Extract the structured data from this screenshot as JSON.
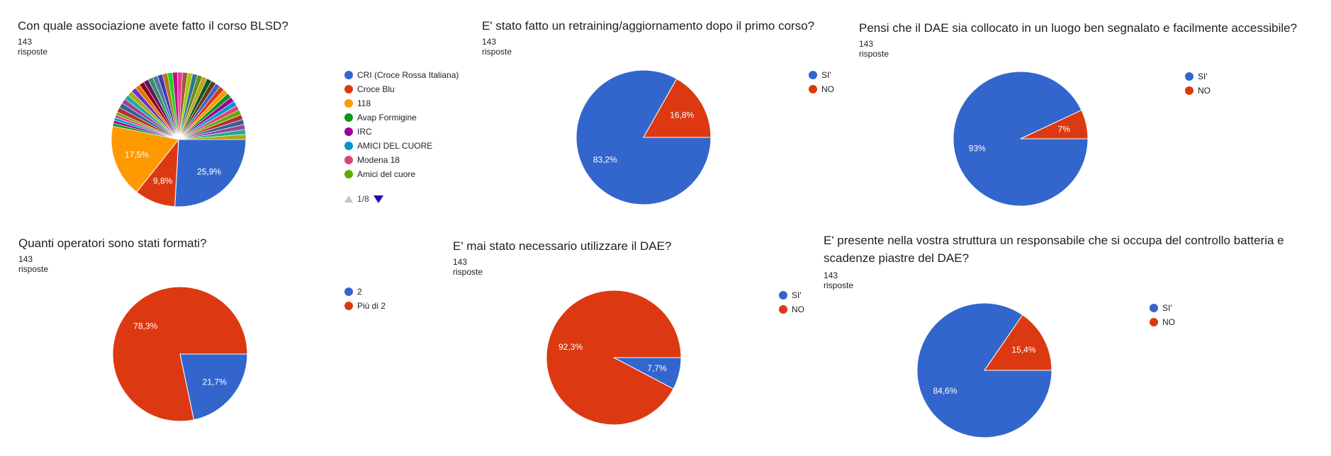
{
  "charts": [
    {
      "title": "Con quale associazione avete fatto il corso BLSD?",
      "count": "143 risposte",
      "legend": [
        {
          "label": "CRI (Croce Rossa Italiana)",
          "color": "#3366cc"
        },
        {
          "label": "Croce Blu",
          "color": "#dc3912"
        },
        {
          "label": "118",
          "color": "#ff9900"
        },
        {
          "label": "Avap Formigine",
          "color": "#109618"
        },
        {
          "label": "IRC",
          "color": "#990099"
        },
        {
          "label": "AMICI DEL CUORE",
          "color": "#0099c6"
        },
        {
          "label": "Modena 18",
          "color": "#dd4477"
        },
        {
          "label": "Amici del cuore",
          "color": "#66aa00"
        }
      ],
      "pager": "1/8"
    },
    {
      "title": "E' stato fatto un retraining/aggiornamento dopo il primo corso?",
      "count": "143 risposte",
      "legend": [
        {
          "label": "SI'",
          "color": "#3366cc"
        },
        {
          "label": "NO",
          "color": "#dc3912"
        }
      ]
    },
    {
      "title": "Pensi che il DAE sia collocato in un luogo ben segnalato e facilmente accessibile?",
      "count": "143 risposte",
      "legend": [
        {
          "label": "SI'",
          "color": "#3366cc"
        },
        {
          "label": "NO",
          "color": "#dc3912"
        }
      ]
    },
    {
      "title": "Quanti operatori sono stati formati?",
      "count": "143 risposte",
      "legend": [
        {
          "label": "2",
          "color": "#3366cc"
        },
        {
          "label": "Più di 2",
          "color": "#dc3912"
        }
      ]
    },
    {
      "title": "E' mai stato necessario utilizzare il DAE?",
      "count": "143 risposte",
      "legend": [
        {
          "label": "SI'",
          "color": "#3366cc"
        },
        {
          "label": "NO",
          "color": "#dc3912"
        }
      ]
    },
    {
      "title": "E' presente nella vostra struttura un responsabile che si occupa del controllo batteria e scadenze piastre del DAE?",
      "count": "143 risposte",
      "legend": [
        {
          "label": "SI'",
          "color": "#3366cc"
        },
        {
          "label": "NO",
          "color": "#dc3912"
        }
      ]
    }
  ],
  "chart_data": [
    {
      "type": "pie",
      "title": "Con quale associazione avete fatto il corso BLSD?",
      "slices": [
        {
          "label": "CRI (Croce Rossa Italiana)",
          "value": 25.9,
          "color": "#3366cc",
          "text": "25,9%"
        },
        {
          "label": "Croce Blu",
          "value": 9.8,
          "color": "#dc3912",
          "text": "9,8%"
        },
        {
          "label": "118",
          "value": 17.5,
          "color": "#ff9900",
          "text": "17,5%"
        },
        {
          "label": "Avap Formigine",
          "value": 0.7,
          "color": "#109618"
        },
        {
          "label": "IRC",
          "value": 0.7,
          "color": "#990099"
        },
        {
          "label": "AMICI DEL CUORE",
          "value": 0.7,
          "color": "#0099c6"
        },
        {
          "label": "Modena 18",
          "value": 0.7,
          "color": "#dd4477"
        },
        {
          "label": "Amici del cuore",
          "value": 0.7,
          "color": "#66aa00"
        }
      ],
      "other_small_slices": 36,
      "other_small_colors": [
        "#b82e2e",
        "#316395",
        "#994499",
        "#22aa99",
        "#aaaa11",
        "#6633cc",
        "#e67300",
        "#8b0707",
        "#651067",
        "#329262",
        "#5574a6",
        "#3b3eac",
        "#b77322",
        "#16d620",
        "#b91383",
        "#f4359e",
        "#9c5935",
        "#a9c413",
        "#2a778d",
        "#668d1c",
        "#bea413",
        "#0c5922",
        "#743411",
        "#3366cc",
        "#dc3912",
        "#ff9900",
        "#109618",
        "#990099",
        "#0099c6",
        "#dd4477",
        "#66aa00",
        "#b82e2e",
        "#316395",
        "#994499",
        "#22aa99",
        "#aaaa11"
      ],
      "legend_position": "right"
    },
    {
      "type": "pie",
      "title": "E' stato fatto un retraining/aggiornamento dopo il primo corso?",
      "slices": [
        {
          "label": "SI'",
          "value": 83.2,
          "color": "#3366cc",
          "text": "83,2%"
        },
        {
          "label": "NO",
          "value": 16.8,
          "color": "#dc3912",
          "text": "16,8%"
        }
      ],
      "legend_position": "right"
    },
    {
      "type": "pie",
      "title": "Pensi che il DAE sia collocato in un luogo ben segnalato e facilmente accessibile?",
      "slices": [
        {
          "label": "SI'",
          "value": 93,
          "color": "#3366cc",
          "text": "93%"
        },
        {
          "label": "NO",
          "value": 7,
          "color": "#dc3912",
          "text": "7%"
        }
      ],
      "legend_position": "right"
    },
    {
      "type": "pie",
      "title": "Quanti operatori sono stati formati?",
      "slices": [
        {
          "label": "2",
          "value": 21.7,
          "color": "#3366cc",
          "text": "21,7%"
        },
        {
          "label": "Più di 2",
          "value": 78.3,
          "color": "#dc3912",
          "text": "78,3%"
        }
      ],
      "legend_position": "right"
    },
    {
      "type": "pie",
      "title": "E' mai stato necessario utilizzare il DAE?",
      "slices": [
        {
          "label": "SI'",
          "value": 7.7,
          "color": "#3366cc",
          "text": "7,7%"
        },
        {
          "label": "NO",
          "value": 92.3,
          "color": "#dc3912",
          "text": "92,3%"
        }
      ],
      "legend_position": "right"
    },
    {
      "type": "pie",
      "title": "E' presente nella vostra struttura un responsabile che si occupa del controllo batteria e scadenze piastre del DAE?",
      "slices": [
        {
          "label": "SI'",
          "value": 84.6,
          "color": "#3366cc",
          "text": "84,6%"
        },
        {
          "label": "NO",
          "value": 15.4,
          "color": "#dc3912",
          "text": "15,4%"
        }
      ],
      "legend_position": "right"
    }
  ]
}
